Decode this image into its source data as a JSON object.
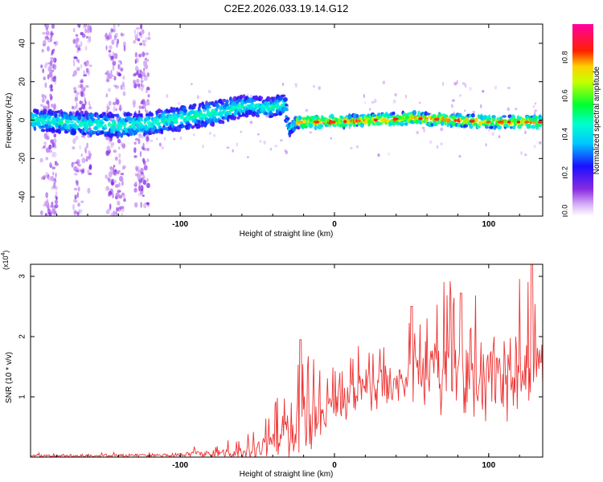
{
  "title": "C2E2.2026.033.19.14.G12",
  "chart_data": [
    {
      "type": "heatmap",
      "name": "spectrogram",
      "xlabel": "Height of straight line (km)",
      "ylabel": "Frequency (Hz)",
      "xlim": [
        -197,
        135
      ],
      "ylim": [
        -50,
        50
      ],
      "x_ticks": [
        -100,
        0,
        100
      ],
      "y_ticks": [
        -40,
        -20,
        0,
        20,
        40
      ],
      "colorbar": {
        "label": "Normalized spectral amplitude",
        "range": [
          0,
          1
        ],
        "ticks": [
          0.0,
          0.2,
          0.4,
          0.6,
          0.8
        ],
        "tick_labels": [
          "0.0",
          "0.2",
          "0.4",
          "0.6",
          "0.8"
        ],
        "colors": [
          "#ffffff",
          "#8a2be2",
          "#0000ff",
          "#00ffff",
          "#00ff00",
          "#ffff00",
          "#ff0000",
          "#ff00ff"
        ]
      },
      "ridge": [
        {
          "x": -195,
          "freq": 0,
          "width": 5
        },
        {
          "x": -160,
          "freq": -2,
          "width": 6
        },
        {
          "x": -130,
          "freq": -3,
          "width": 6
        },
        {
          "x": -100,
          "freq": 1,
          "width": 6
        },
        {
          "x": -75,
          "freq": 4,
          "width": 6
        },
        {
          "x": -55,
          "freq": 8,
          "width": 5
        },
        {
          "x": -45,
          "freq": 6,
          "width": 5
        },
        {
          "x": -32,
          "freq": 8,
          "width": 5
        },
        {
          "x": -30,
          "freq": -5,
          "width": 3
        },
        {
          "x": -25,
          "freq": -1,
          "width": 3
        },
        {
          "x": 0,
          "freq": -1,
          "width": 3
        },
        {
          "x": 50,
          "freq": 1,
          "width": 3
        },
        {
          "x": 100,
          "freq": -1,
          "width": 3
        },
        {
          "x": 135,
          "freq": -1,
          "width": 3
        }
      ]
    },
    {
      "type": "line",
      "name": "snr",
      "xlabel": "Height of straight line (km)",
      "ylabel": "SNR (10 * v/v)",
      "y_multiplier": "(x10",
      "y_multiplier_exp": "4",
      "y_multiplier_close": ")",
      "xlim": [
        -197,
        135
      ],
      "ylim": [
        0,
        3.2
      ],
      "x_ticks": [
        -100,
        0,
        100
      ],
      "y_ticks": [
        1,
        2,
        3
      ],
      "color": "#ee3333",
      "envelope": [
        {
          "x": -197,
          "base": 0.02,
          "amp": 0.04
        },
        {
          "x": -110,
          "base": 0.03,
          "amp": 0.05
        },
        {
          "x": -80,
          "base": 0.05,
          "amp": 0.12
        },
        {
          "x": -60,
          "base": 0.08,
          "amp": 0.18
        },
        {
          "x": -40,
          "base": 0.2,
          "amp": 0.4
        },
        {
          "x": -30,
          "base": 0.4,
          "amp": 0.9
        },
        {
          "x": -20,
          "base": 0.6,
          "amp": 1.0
        },
        {
          "x": 0,
          "base": 0.75,
          "amp": 0.6
        },
        {
          "x": 20,
          "base": 1.1,
          "amp": 0.6
        },
        {
          "x": 40,
          "base": 1.2,
          "amp": 0.6
        },
        {
          "x": 60,
          "base": 1.3,
          "amp": 1.1
        },
        {
          "x": 100,
          "base": 1.35,
          "amp": 1.3
        },
        {
          "x": 135,
          "base": 1.3,
          "amp": 1.2
        }
      ],
      "peaks": [
        {
          "x": -22,
          "y": 1.95
        },
        {
          "x": 50,
          "y": 2.5
        },
        {
          "x": 82,
          "y": 2.72
        },
        {
          "x": 128,
          "y": 3.2
        }
      ]
    }
  ]
}
